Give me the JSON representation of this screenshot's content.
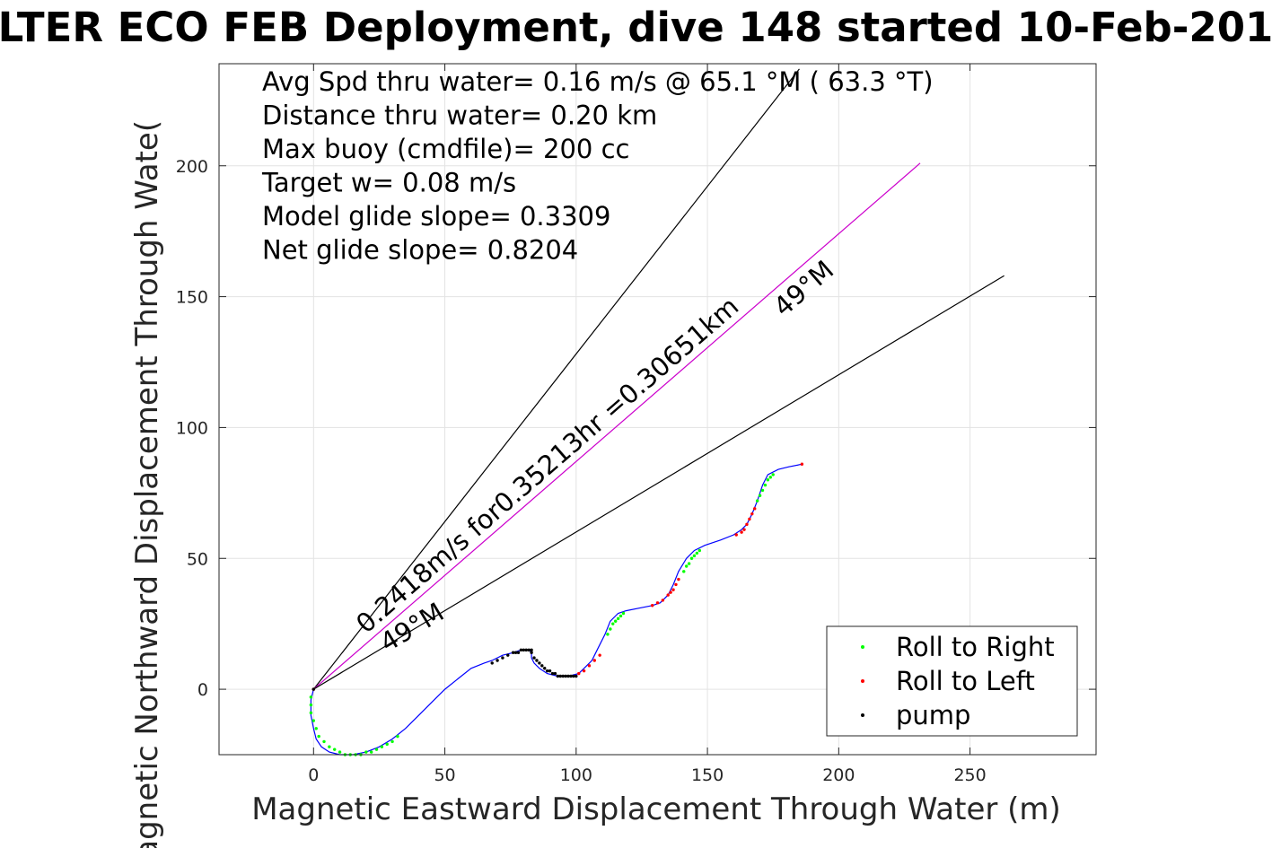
{
  "chart_data": {
    "type": "line",
    "title": "LTER ECO FEB Deployment, dive 148 started 10-Feb-201",
    "xlabel": "Magnetic Eastward Displacement Through Water (m)",
    "ylabel": "Magnetic Northward Displacement Through Wate(",
    "xlim": [
      -36,
      298
    ],
    "ylim": [
      -25,
      239
    ],
    "xticks": [
      0,
      50,
      100,
      150,
      200,
      250
    ],
    "yticks": [
      0,
      50,
      100,
      150,
      200
    ],
    "grid": true,
    "annotations": [
      "Avg Spd thru water=  0.16 m/s @  65.1 °M ( 63.3 °T)",
      "Distance thru water=  0.20 km",
      "Max buoy (cmdfile)= 200 cc",
      "Target w= 0.08 m/s",
      "Model glide slope= 0.3309",
      "Net glide slope= 0.8204"
    ],
    "rays": [
      {
        "color": "#000000",
        "from": [
          0,
          0
        ],
        "to": [
          185,
          237
        ]
      },
      {
        "color": "#cc00cc",
        "from": [
          0,
          0
        ],
        "to": [
          231,
          201
        ]
      },
      {
        "color": "#000000",
        "from": [
          0,
          0
        ],
        "to": [
          263,
          158
        ]
      }
    ],
    "ray_labels": [
      {
        "text": "0.2418m/s for0.35213hr =0.30651km",
        "x": 20,
        "y": 21,
        "angle_deg": 41
      },
      {
        "text": "49°M",
        "x": 179,
        "y": 142,
        "angle_deg": 41
      },
      {
        "text": "49°M",
        "x": 28,
        "y": 14,
        "angle_deg": 31
      }
    ],
    "track": {
      "name": "",
      "color": "#0000ff",
      "x": [
        0,
        -1,
        -1,
        0,
        1,
        3,
        6,
        10,
        15,
        20,
        25,
        30,
        35,
        40,
        45,
        50,
        55,
        60,
        65,
        68,
        72,
        76,
        79,
        81,
        82,
        83,
        83,
        84,
        86,
        89,
        93,
        97,
        101,
        103,
        106,
        108,
        111,
        113,
        116,
        119,
        124,
        129,
        132,
        135,
        137,
        139,
        142,
        145,
        149,
        155,
        160,
        163,
        165,
        167,
        169,
        171,
        173,
        177,
        181,
        186
      ],
      "y": [
        0,
        -4,
        -10,
        -15,
        -19,
        -22,
        -24,
        -25,
        -25,
        -24,
        -22,
        -19,
        -15,
        -10,
        -5,
        0,
        4,
        8,
        10,
        11,
        13,
        14,
        15,
        15,
        15,
        14,
        12,
        10,
        8,
        6,
        5,
        5,
        6,
        8,
        11,
        15,
        21,
        26,
        29,
        30,
        31,
        32,
        33,
        36,
        40,
        45,
        50,
        53,
        55,
        57,
        59,
        61,
        63,
        67,
        72,
        78,
        82,
        84,
        85,
        86
      ]
    },
    "series": [
      {
        "name": "Roll to Right",
        "color": "#00ff00",
        "x": [
          -1,
          -1,
          -1,
          0,
          1,
          2,
          4,
          6,
          8,
          10,
          12,
          14,
          16,
          18,
          20,
          22,
          24,
          26,
          28,
          30,
          32,
          112,
          113,
          114,
          115,
          116,
          117,
          118,
          141,
          142,
          143,
          144,
          145,
          146,
          147,
          169,
          170,
          171,
          172,
          173,
          174,
          175
        ],
        "y": [
          -3,
          -6,
          -9,
          -12,
          -15,
          -18,
          -20,
          -22,
          -23,
          -24,
          -25,
          -25,
          -25,
          -25,
          -24,
          -24,
          -23,
          -22,
          -21,
          -20,
          -18,
          21,
          23,
          25,
          26,
          27,
          28,
          29,
          45,
          47,
          48,
          50,
          51,
          52,
          53,
          72,
          74,
          76,
          78,
          80,
          81,
          82
        ]
      },
      {
        "name": "Roll to Left",
        "color": "#ff0000",
        "x": [
          0,
          101,
          103,
          105,
          107,
          109,
          129,
          131,
          133,
          135,
          136,
          137,
          138,
          139,
          161,
          163,
          164,
          165,
          166,
          167,
          168,
          186
        ],
        "y": [
          0,
          6,
          7,
          9,
          11,
          13,
          32,
          33,
          34,
          36,
          37,
          38,
          40,
          42,
          59,
          60,
          61,
          63,
          65,
          67,
          69,
          86
        ]
      },
      {
        "name": "pump",
        "color": "#000000",
        "x": [
          0,
          68,
          70,
          72,
          74,
          76,
          77,
          78,
          79,
          80,
          81,
          82,
          83,
          83,
          84,
          85,
          86,
          87,
          88,
          89,
          90,
          91,
          92,
          93,
          94,
          95,
          96,
          97,
          98,
          99,
          100
        ],
        "y": [
          0,
          10,
          11,
          12,
          13,
          14,
          14,
          14,
          15,
          15,
          15,
          15,
          15,
          14,
          12,
          11,
          10,
          9,
          8,
          7,
          7,
          6,
          6,
          5,
          5,
          5,
          5,
          5,
          5,
          5,
          5
        ]
      }
    ],
    "legend": {
      "position": "bottom-right",
      "entries": [
        {
          "label": "Roll to Right",
          "color": "#00ff00"
        },
        {
          "label": "Roll to Left",
          "color": "#ff0000"
        },
        {
          "label": "pump",
          "color": "#000000"
        }
      ]
    }
  }
}
